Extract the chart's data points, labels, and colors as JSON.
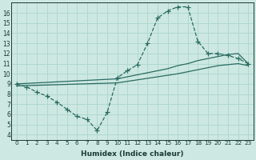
{
  "bg_color": "#cde8e2",
  "grid_color": "#b0d8d0",
  "line_color": "#2a6b62",
  "xlabel": "Humidex (Indice chaleur)",
  "xlim": [
    -0.5,
    23.5
  ],
  "ylim": [
    3.5,
    17.0
  ],
  "xticks": [
    0,
    1,
    2,
    3,
    4,
    5,
    6,
    7,
    8,
    9,
    10,
    11,
    12,
    13,
    14,
    15,
    16,
    17,
    18,
    19,
    20,
    21,
    22,
    23
  ],
  "yticks": [
    4,
    5,
    6,
    7,
    8,
    9,
    10,
    11,
    12,
    13,
    14,
    15,
    16
  ],
  "series": [
    {
      "x": [
        0,
        1,
        2,
        3,
        4,
        5,
        6,
        7,
        8,
        9,
        10,
        11,
        12,
        13,
        14,
        15,
        16,
        17,
        18,
        19,
        20,
        21,
        22,
        23
      ],
      "y": [
        9.0,
        8.7,
        8.2,
        7.8,
        7.2,
        6.5,
        5.8,
        5.5,
        4.4,
        6.2,
        9.6,
        10.3,
        10.9,
        13.0,
        15.5,
        16.2,
        16.6,
        16.6,
        13.2,
        12.0,
        12.0,
        11.8,
        11.5,
        11.0
      ],
      "linestyle": "--",
      "marker": "+",
      "markersize": 4,
      "linewidth": 0.9
    },
    {
      "x": [
        0,
        10,
        11,
        12,
        13,
        14,
        15,
        16,
        17,
        18,
        19,
        20,
        21,
        22,
        23
      ],
      "y": [
        9.0,
        9.5,
        9.7,
        9.9,
        10.1,
        10.3,
        10.5,
        10.8,
        11.0,
        11.3,
        11.5,
        11.7,
        11.9,
        12.0,
        11.0
      ],
      "linestyle": "-",
      "marker": null,
      "markersize": 0,
      "linewidth": 0.9
    },
    {
      "x": [
        0,
        10,
        11,
        12,
        13,
        14,
        15,
        16,
        17,
        18,
        19,
        20,
        21,
        22,
        23
      ],
      "y": [
        8.8,
        9.1,
        9.25,
        9.4,
        9.55,
        9.7,
        9.85,
        10.0,
        10.2,
        10.4,
        10.6,
        10.8,
        10.9,
        11.0,
        10.8
      ],
      "linestyle": "-",
      "marker": null,
      "markersize": 0,
      "linewidth": 0.9
    }
  ]
}
